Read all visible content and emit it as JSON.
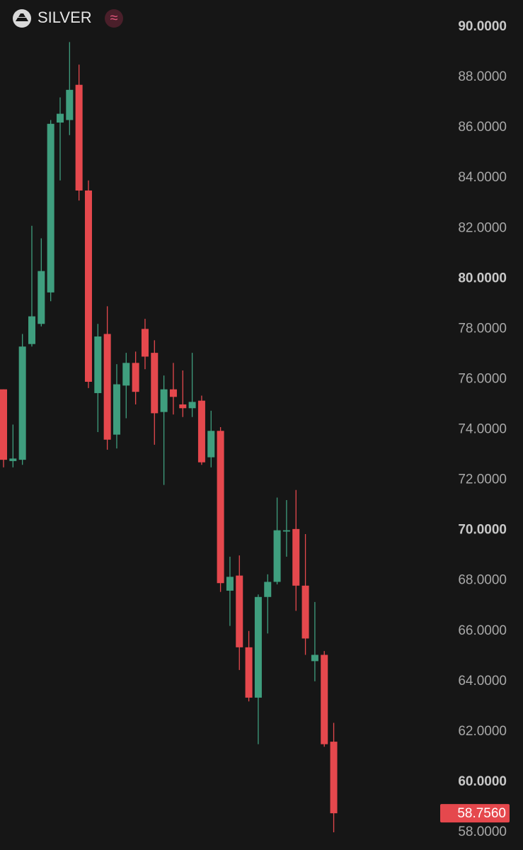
{
  "chart_data": {
    "type": "candlestick",
    "title": "SILVER",
    "badge": "≈",
    "up_color": "#3f9e7e",
    "down_color": "#e5484d",
    "ylim": [
      58,
      90
    ],
    "yticks": [
      {
        "value": 58,
        "label": "58.0000"
      },
      {
        "value": 60,
        "label": "60.0000"
      },
      {
        "value": 62,
        "label": "62.0000"
      },
      {
        "value": 64,
        "label": "64.0000"
      },
      {
        "value": 66,
        "label": "66.0000"
      },
      {
        "value": 68,
        "label": "68.0000"
      },
      {
        "value": 70,
        "label": "70.0000"
      },
      {
        "value": 72,
        "label": "72.0000"
      },
      {
        "value": 74,
        "label": "74.0000"
      },
      {
        "value": 76,
        "label": "76.0000"
      },
      {
        "value": 78,
        "label": "78.0000"
      },
      {
        "value": 80,
        "label": "80.0000"
      },
      {
        "value": 82,
        "label": "82.0000"
      },
      {
        "value": 84,
        "label": "84.0000"
      },
      {
        "value": 86,
        "label": "86.0000"
      },
      {
        "value": 88,
        "label": "88.0000"
      },
      {
        "value": 90,
        "label": "90.0000"
      }
    ],
    "last_price": {
      "value": 58.756,
      "label": "58.7560"
    },
    "series": {
      "open": [
        75.6,
        72.75,
        72.8,
        77.4,
        78.2,
        79.45,
        86.2,
        86.3,
        87.7,
        83.5,
        75.45,
        77.8,
        73.8,
        75.75,
        76.65,
        78.0,
        77.05,
        74.7,
        75.6,
        75.0,
        74.85,
        75.15,
        72.9,
        73.95,
        67.6,
        68.2,
        65.35,
        63.35,
        67.35,
        67.95,
        69.95,
        70.05,
        67.8,
        64.8,
        65.05,
        61.6
      ],
      "high": [
        75.6,
        74.2,
        77.8,
        82.1,
        81.6,
        86.3,
        87.2,
        89.4,
        88.5,
        83.9,
        78.2,
        78.9,
        76.6,
        77.05,
        77.1,
        78.4,
        77.55,
        76.15,
        76.65,
        76.35,
        77.05,
        75.35,
        74.75,
        74.1,
        68.95,
        69.0,
        66.0,
        67.45,
        68.25,
        71.3,
        71.2,
        71.6,
        69.85,
        67.15,
        65.2,
        62.35
      ],
      "low": [
        72.5,
        72.5,
        72.6,
        77.3,
        78.1,
        79.1,
        83.9,
        85.7,
        83.1,
        75.65,
        73.9,
        73.2,
        73.25,
        74.45,
        75.0,
        76.4,
        73.4,
        71.8,
        74.6,
        74.5,
        74.5,
        72.6,
        72.5,
        67.55,
        66.2,
        64.45,
        63.2,
        61.5,
        65.9,
        67.85,
        68.95,
        66.8,
        65.05,
        64.0,
        61.4,
        58.0
      ],
      "close": [
        72.8,
        72.85,
        77.3,
        78.5,
        80.3,
        86.15,
        86.55,
        87.5,
        83.5,
        75.9,
        77.7,
        73.6,
        75.8,
        76.65,
        75.5,
        76.9,
        74.65,
        75.6,
        75.3,
        74.85,
        75.1,
        72.7,
        73.95,
        67.9,
        68.15,
        65.35,
        63.35,
        67.35,
        67.95,
        70.0,
        70.0,
        67.8,
        65.7,
        65.05,
        61.5,
        58.756
      ]
    }
  }
}
